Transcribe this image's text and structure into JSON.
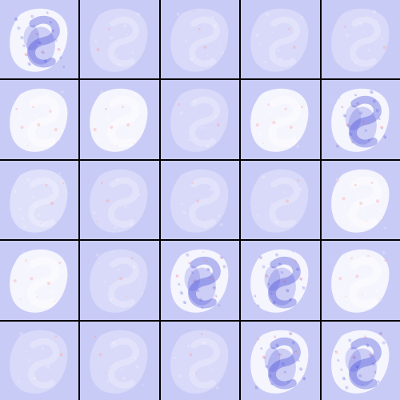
{
  "grid": {
    "rows": 5,
    "cols": 5,
    "background_color": "#c9cbf7",
    "border_color": "#000000",
    "tiles": [
      {
        "icon": "faint-digit-feature-map",
        "intensity": "strong",
        "tone": "blue-mixed"
      },
      {
        "icon": "faint-digit-feature-map",
        "intensity": "faint",
        "tone": "white"
      },
      {
        "icon": "faint-digit-feature-map",
        "intensity": "faint",
        "tone": "white-mixed"
      },
      {
        "icon": "faint-digit-feature-map",
        "intensity": "faint",
        "tone": "white"
      },
      {
        "icon": "faint-digit-feature-map",
        "intensity": "faint",
        "tone": "white"
      },
      {
        "icon": "faint-digit-feature-map",
        "intensity": "strong",
        "tone": "white-mixed"
      },
      {
        "icon": "faint-digit-feature-map",
        "intensity": "strong",
        "tone": "white"
      },
      {
        "icon": "faint-digit-feature-map",
        "intensity": "faint",
        "tone": "white"
      },
      {
        "icon": "faint-digit-feature-map",
        "intensity": "strong",
        "tone": "white-mixed"
      },
      {
        "icon": "faint-digit-feature-map",
        "intensity": "strong",
        "tone": "blue-mixed"
      },
      {
        "icon": "faint-digit-feature-map",
        "intensity": "medium",
        "tone": "white-mixed"
      },
      {
        "icon": "faint-digit-feature-map",
        "intensity": "faint",
        "tone": "white"
      },
      {
        "icon": "faint-digit-feature-map",
        "intensity": "faint",
        "tone": "white"
      },
      {
        "icon": "faint-digit-feature-map",
        "intensity": "faint",
        "tone": "white"
      },
      {
        "icon": "faint-digit-feature-map",
        "intensity": "strong",
        "tone": "white-mixed"
      },
      {
        "icon": "faint-digit-feature-map",
        "intensity": "strong",
        "tone": "white-mixed"
      },
      {
        "icon": "faint-digit-feature-map",
        "intensity": "faint",
        "tone": "white"
      },
      {
        "icon": "faint-digit-feature-map",
        "intensity": "strong",
        "tone": "blue"
      },
      {
        "icon": "faint-digit-feature-map",
        "intensity": "strong",
        "tone": "blue"
      },
      {
        "icon": "faint-digit-feature-map",
        "intensity": "strong",
        "tone": "white-mixed"
      },
      {
        "icon": "faint-digit-feature-map",
        "intensity": "faint",
        "tone": "white"
      },
      {
        "icon": "faint-digit-feature-map",
        "intensity": "faint",
        "tone": "white"
      },
      {
        "icon": "faint-digit-feature-map",
        "intensity": "faint",
        "tone": "white"
      },
      {
        "icon": "faint-digit-feature-map",
        "intensity": "strong",
        "tone": "blue-mixed"
      },
      {
        "icon": "faint-digit-feature-map",
        "intensity": "strong",
        "tone": "blue-mixed"
      }
    ]
  }
}
